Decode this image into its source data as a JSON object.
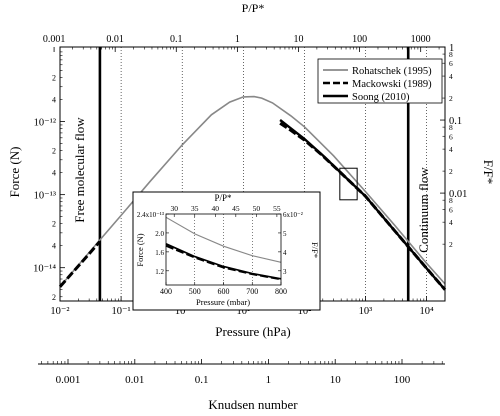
{
  "chart_data": [
    {
      "type": "line",
      "title": "",
      "xlabel": "Pressure (hPa)",
      "ylabel": "Force (N)",
      "x_scale": "log",
      "y_scale": "log",
      "xlim": [
        0.01,
        20000
      ],
      "ylim": [
        3.5e-15,
        1.05e-11
      ],
      "x_tick_labels": [
        "10⁻²",
        "10⁻¹",
        "10⁰",
        "10¹",
        "10²",
        "10³",
        "10⁴"
      ],
      "y_tick_labels": [
        "10⁻¹²",
        "10⁻¹³",
        "10⁻¹⁴"
      ],
      "minor_labels": [
        "2",
        "4",
        "2",
        "4",
        "2",
        "4",
        "2",
        "4",
        "2"
      ],
      "top_axis": {
        "label": "P/P*",
        "tick_labels": [
          "0.001",
          "0.01",
          "0.1",
          "1",
          "10",
          "100",
          "1000"
        ]
      },
      "right_axis": {
        "label": "F/F*",
        "tick_labels": [
          "1",
          "0.1",
          "0.01"
        ],
        "minor_labels": [
          "8",
          "6",
          "4",
          "2",
          "8",
          "6",
          "4",
          "2",
          "8",
          "6",
          "4",
          "2",
          "2"
        ]
      },
      "second_x_axis": {
        "label": "Knudsen number",
        "tick_labels": [
          "0.001",
          "0.01",
          "0.1",
          "1",
          "10",
          "100"
        ]
      },
      "legend": {
        "placement": "top-right",
        "entries": [
          "Rohatschek (1995)",
          "Mackowski (1989)",
          "Soong (2010)"
        ]
      },
      "annotations": [
        "Free molecular flow",
        "Continuum flow"
      ],
      "vertical_lines": [
        0.045,
        5000
      ],
      "highlight_box": {
        "x": [
          380,
          730
        ],
        "y": [
          8.5e-14,
          2.3e-13
        ]
      },
      "series": [
        {
          "name": "Rohatschek (1995)",
          "color": "#888888",
          "x": [
            0.01,
            0.03,
            0.1,
            0.3,
            1,
            3,
            6,
            10,
            15,
            20,
            30,
            60,
            100,
            300,
            1000,
            3000,
            10000,
            20000
          ],
          "y": [
            5.5e-15,
            1.62e-14,
            5.2e-14,
            1.53e-13,
            4.8e-13,
            1.24e-12,
            1.85e-12,
            2.18e-12,
            2.2e-12,
            2.1e-12,
            1.8e-12,
            1.2e-12,
            8.5e-13,
            3.4e-13,
            1.1e-13,
            3.8e-14,
            1.15e-14,
            6e-15
          ]
        },
        {
          "name": "Mackowski (1989)",
          "color": "#000000",
          "x": [
            0.01,
            0.03,
            0.045,
            40,
            60,
            100,
            200,
            500,
            1000,
            3000,
            10000,
            20000
          ],
          "y": [
            5.5e-15,
            1.55e-14,
            2.3e-14,
            9.5e-13,
            7.6e-13,
            5.6e-13,
            3.4e-13,
            1.65e-13,
            9.5e-14,
            3.2e-14,
            9.8e-15,
            5e-15
          ]
        },
        {
          "name": "Soong (2010)",
          "color": "#000000",
          "x": [
            40,
            60,
            100,
            200,
            500,
            1000,
            3000,
            10000,
            20000
          ],
          "y": [
            1.05e-12,
            8.1e-13,
            5.8e-13,
            3.45e-13,
            1.65e-13,
            9.5e-14,
            3.2e-14,
            9.8e-15,
            5e-15
          ]
        }
      ]
    },
    {
      "type": "line",
      "title": "",
      "xlabel": "Pressure (mbar)",
      "ylabel": "Force (N)",
      "xlim": [
        400,
        800
      ],
      "ylim": [
        9e-14,
        2.4e-13
      ],
      "x_tick_labels": [
        "400",
        "500",
        "600",
        "700",
        "800"
      ],
      "y_tick_labels": [
        "2.4x10⁻¹³",
        "2.0",
        "1.6",
        "1.2"
      ],
      "top_axis": {
        "label": "P/P*",
        "tick_labels": [
          "30",
          "35",
          "40",
          "45",
          "50",
          "55"
        ]
      },
      "right_axis": {
        "label": "F/F*",
        "tick_labels": [
          "6x10⁻²",
          "5",
          "4",
          "3"
        ]
      },
      "series": [
        {
          "name": "Rohatschek (1995)",
          "color": "#888888",
          "x": [
            400,
            500,
            600,
            700,
            800
          ],
          "y": [
            2.33e-13,
            1.98e-13,
            1.72e-13,
            1.52e-13,
            1.38e-13
          ]
        },
        {
          "name": "Mackowski (1989)",
          "color": "#000000",
          "x": [
            400,
            500,
            600,
            700,
            800
          ],
          "y": [
            1.73e-13,
            1.48e-13,
            1.27e-13,
            1.13e-13,
            1.02e-13
          ]
        },
        {
          "name": "Soong (2010)",
          "color": "#000000",
          "x": [
            400,
            500,
            600,
            700,
            800
          ],
          "y": [
            1.77e-13,
            1.5e-13,
            1.29e-13,
            1.14e-13,
            1.03e-13
          ]
        }
      ]
    }
  ]
}
